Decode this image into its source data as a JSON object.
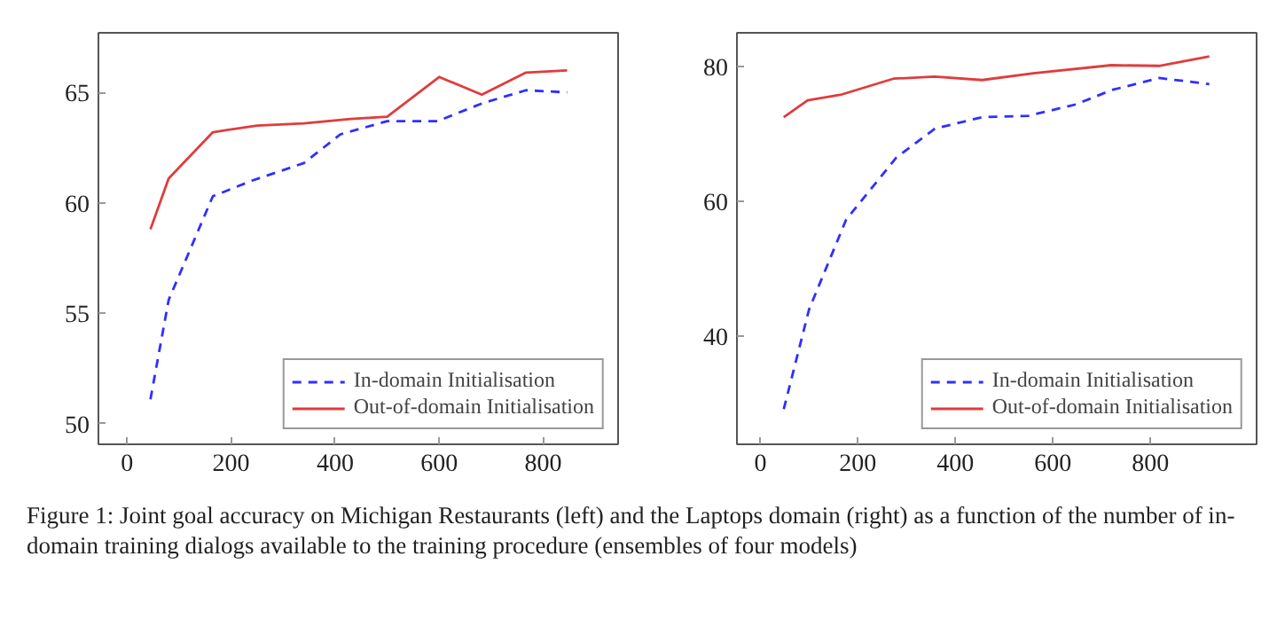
{
  "chart_data": [
    {
      "type": "line",
      "xlim": [
        -55,
        944
      ],
      "ylim": [
        49.06,
        67.7
      ],
      "xticks": [
        0,
        200,
        400,
        600,
        800
      ],
      "yticks": [
        50,
        55,
        60,
        65
      ],
      "grid": false,
      "legend": "bottom right",
      "series": [
        {
          "name": "In-domain Initialisation",
          "color": "#2f2fff",
          "line_style": "dashed",
          "x": [
            45,
            80,
            165,
            240,
            340,
            410,
            500,
            597,
            682,
            767,
            846
          ],
          "values": [
            51.1,
            55.6,
            60.3,
            61.0,
            61.8,
            63.1,
            63.7,
            63.7,
            64.5,
            65.1,
            65.0
          ]
        },
        {
          "name": "Out-of-domain Initialisation",
          "color": "#e03c3c",
          "line_style": "solid",
          "x": [
            45,
            80,
            165,
            250,
            340,
            430,
            500,
            600,
            682,
            767,
            846
          ],
          "values": [
            58.8,
            61.1,
            63.2,
            63.5,
            63.6,
            63.8,
            63.9,
            65.7,
            64.9,
            65.9,
            66.0
          ]
        }
      ],
      "annotations": [
        "Figure 1: Joint goal accuracy on Michigan Restaurants (left) and the Laptops domain (right) as a function of the number of in-domain training dialogs available to the training procedure (ensembles of four models)"
      ]
    },
    {
      "type": "line",
      "xlim": [
        -48,
        1018
      ],
      "ylim": [
        24,
        85
      ],
      "xticks": [
        0,
        200,
        400,
        600,
        800
      ],
      "yticks": [
        40,
        60,
        80
      ],
      "grid": false,
      "legend": "bottom right",
      "series": [
        {
          "name": "In-domain Initialisation",
          "color": "#2f2fff",
          "line_style": "dashed",
          "x": [
            48,
            100,
            176,
            279,
            358,
            455,
            550,
            648,
            720,
            818,
            921
          ],
          "values": [
            29.2,
            44.0,
            57.3,
            66.5,
            70.8,
            72.5,
            72.7,
            74.4,
            76.5,
            78.3,
            77.4
          ]
        },
        {
          "name": "Out-of-domain Initialisation",
          "color": "#e03c3c",
          "line_style": "solid",
          "x": [
            48,
            97,
            164,
            273,
            358,
            455,
            560,
            720,
            818,
            921
          ],
          "values": [
            72.5,
            75.0,
            75.8,
            78.2,
            78.5,
            78.0,
            79.0,
            80.2,
            80.1,
            81.5
          ]
        }
      ]
    }
  ]
}
